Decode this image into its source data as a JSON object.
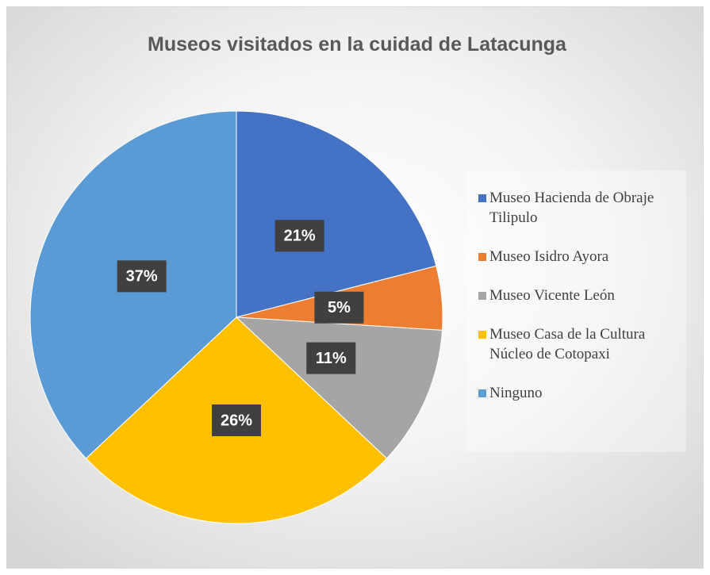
{
  "chart_data": {
    "type": "pie",
    "title": "Museos visitados en la cuidad de Latacunga",
    "categories": [
      "Museo Hacienda de Obraje Tilipulo",
      "Museo Isidro Ayora",
      "Museo Vicente León",
      "Museo Casa de la Cultura Núcleo de Cotopaxi",
      "Ninguno"
    ],
    "values": [
      21,
      5,
      11,
      26,
      37
    ],
    "value_labels": [
      "21%",
      "5%",
      "11%",
      "26%",
      "37%"
    ],
    "colors": [
      "#4472c4",
      "#ed7d31",
      "#a5a5a5",
      "#ffc000",
      "#5b9bd5"
    ],
    "legend": "right"
  }
}
